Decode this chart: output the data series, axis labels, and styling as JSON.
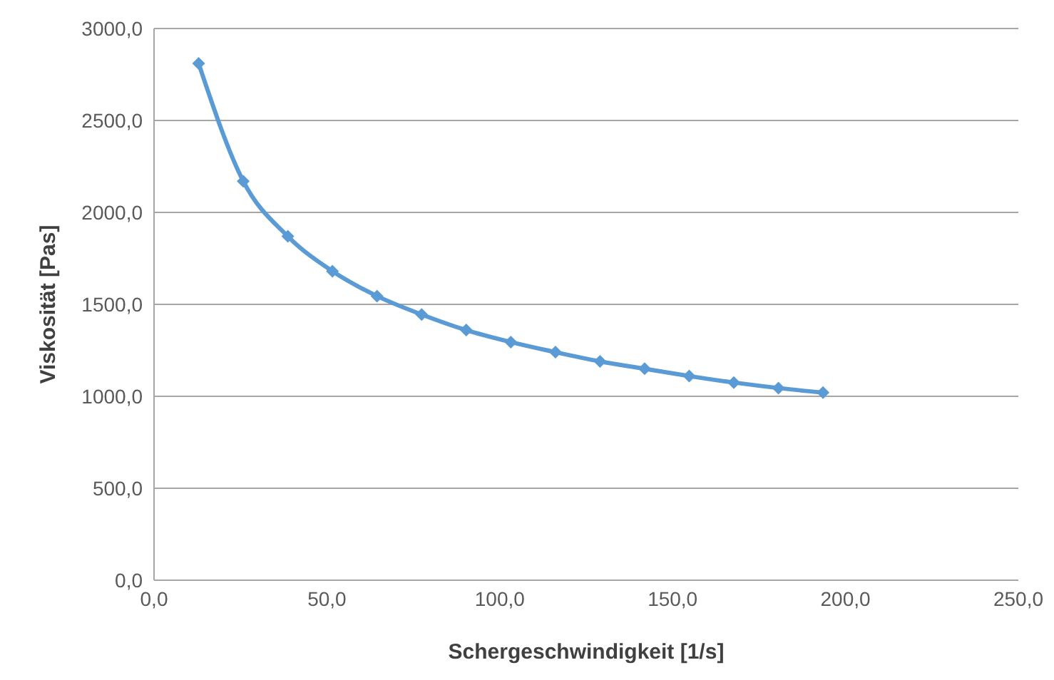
{
  "chart_data": {
    "type": "line",
    "xlabel": "Schergeschwindigkeit [1/s]",
    "ylabel": "Viskosität [Pas]",
    "x": [
      12.9,
      25.8,
      38.7,
      51.6,
      64.5,
      77.4,
      90.3,
      103.2,
      116.1,
      129,
      141.9,
      154.8,
      167.7,
      180.6,
      193.5
    ],
    "series": [
      {
        "color": "#5b9bd5",
        "values": [
          2810,
          2170,
          1870,
          1680,
          1545,
          1445,
          1360,
          1295,
          1240,
          1190,
          1150,
          1110,
          1075,
          1045,
          1020
        ]
      }
    ],
    "xlim": [
      0,
      250
    ],
    "xticks": [
      {
        "value": 0,
        "label": "0,0"
      },
      {
        "value": 50,
        "label": "50,0"
      },
      {
        "value": 100,
        "label": "100,0"
      },
      {
        "value": 150,
        "label": "150,0"
      },
      {
        "value": 200,
        "label": "200,0"
      },
      {
        "value": 250,
        "label": "250,0"
      }
    ],
    "ylim": [
      0,
      3000
    ],
    "yticks": [
      {
        "value": 0,
        "label": "0,0"
      },
      {
        "value": 500,
        "label": "500,0"
      },
      {
        "value": 1000,
        "label": "1000,0"
      },
      {
        "value": 1500,
        "label": "1500,0"
      },
      {
        "value": 2000,
        "label": "2000,0"
      },
      {
        "value": 2500,
        "label": "2500,0"
      },
      {
        "value": 3000,
        "label": "3000,0"
      }
    ],
    "grid": "y",
    "legend": false,
    "marker": "diamond",
    "line_style": "solid"
  }
}
